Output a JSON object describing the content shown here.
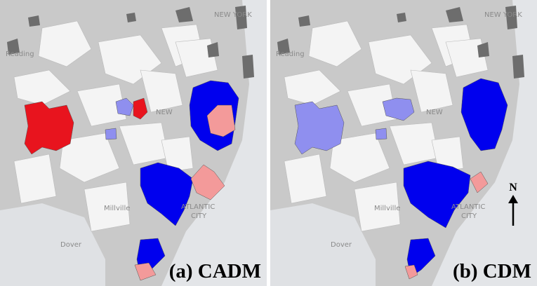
{
  "panels": [
    {
      "label": "(a) CADM",
      "map_labels": [
        "NEW YORK",
        "Reading",
        "NEW",
        "Millville",
        "ATLANTIC",
        "CITY",
        "Dover"
      ]
    },
    {
      "label": "(b) CDM",
      "map_labels": [
        "NEW YORK",
        "Reading",
        "NEW",
        "Millville",
        "ATLANTIC",
        "CITY",
        "Dover"
      ]
    }
  ],
  "north_arrow": "N"
}
